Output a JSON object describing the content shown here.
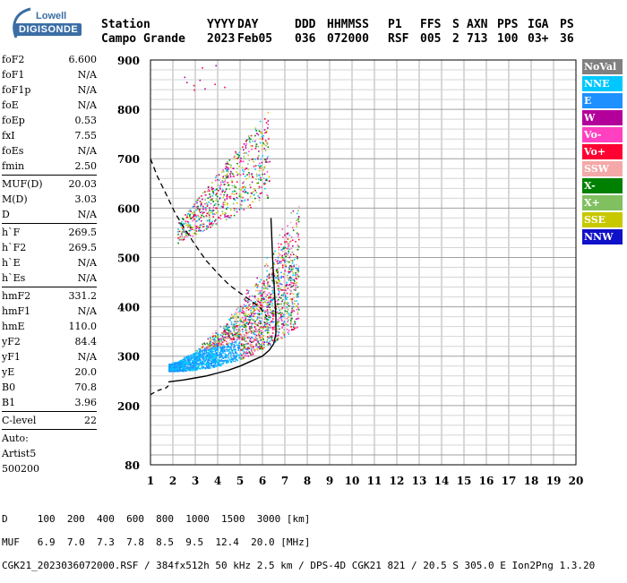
{
  "logo": {
    "line1": "Lowell",
    "line2": "DIGISONDE"
  },
  "header": {
    "columns": [
      "Station",
      "YYYY",
      "DAY",
      "DDD",
      "HHMMSS",
      "P1",
      "FFS",
      "S",
      "AXN",
      "PPS",
      "IGA",
      "PS"
    ],
    "values": [
      "Campo Grande",
      "2023",
      "Feb05",
      "036",
      "072000",
      "RSF",
      "005",
      "2",
      "713",
      "100",
      "03+",
      "36"
    ]
  },
  "params_group1": [
    {
      "k": "foF2",
      "v": "6.600"
    },
    {
      "k": "foF1",
      "v": "N/A"
    },
    {
      "k": "foF1p",
      "v": "N/A"
    },
    {
      "k": "foE",
      "v": "N/A"
    },
    {
      "k": "foEp",
      "v": "0.53"
    },
    {
      "k": "fxI",
      "v": "7.55"
    },
    {
      "k": "foEs",
      "v": "N/A"
    },
    {
      "k": "fmin",
      "v": "2.50"
    }
  ],
  "params_group2": [
    {
      "k": "MUF(D)",
      "v": "20.03"
    },
    {
      "k": "M(D)",
      "v": "3.03"
    },
    {
      "k": "D",
      "v": "N/A"
    }
  ],
  "params_group3": [
    {
      "k": "h`F",
      "v": "269.5"
    },
    {
      "k": "h`F2",
      "v": "269.5"
    },
    {
      "k": "h`E",
      "v": "N/A"
    },
    {
      "k": "h`Es",
      "v": "N/A"
    }
  ],
  "params_group4": [
    {
      "k": "hmF2",
      "v": "331.2"
    },
    {
      "k": "hmF1",
      "v": "N/A"
    },
    {
      "k": "hmE",
      "v": "110.0"
    },
    {
      "k": "yF2",
      "v": "84.4"
    },
    {
      "k": "yF1",
      "v": "N/A"
    },
    {
      "k": "yE",
      "v": "20.0"
    },
    {
      "k": "B0",
      "v": "70.8"
    },
    {
      "k": "B1",
      "v": "3.96"
    }
  ],
  "params_group5": [
    {
      "k": "C-level",
      "v": "22"
    }
  ],
  "auto": {
    "l1": "Auto:",
    "l2": "Artist5",
    "l3": "500200"
  },
  "legend": [
    {
      "label": "NoVal",
      "color": "#808080"
    },
    {
      "label": "NNE",
      "color": "#00c8ff"
    },
    {
      "label": "E",
      "color": "#1e90ff"
    },
    {
      "label": "W",
      "color": "#b4009b"
    },
    {
      "label": "Vo-",
      "color": "#ff40c0"
    },
    {
      "label": "Vo+",
      "color": "#ff0032"
    },
    {
      "label": "SSW",
      "color": "#f4a8a8"
    },
    {
      "label": "X-",
      "color": "#008000"
    },
    {
      "label": "X+",
      "color": "#80c060"
    },
    {
      "label": "SSE",
      "color": "#c8c800"
    },
    {
      "label": "NNW",
      "color": "#1010c8"
    }
  ],
  "footer": {
    "line1": "D     100  200  400  600  800  1000  1500  3000 [km]",
    "line2": "MUF   6.9  7.0  7.3  7.8  8.5  9.5  12.4  20.0 [MHz]",
    "line3": "CGK21_2023036072000.RSF / 384fx512h 50 kHz 2.5 km / DPS-4D CGK21 821 / 20.5 S 305.0 E Ion2Png 1.3.20"
  },
  "chart_data": {
    "type": "scatter",
    "xlim": [
      1,
      20
    ],
    "ylim": [
      80,
      900
    ],
    "xticks": [
      1,
      2,
      3,
      4,
      5,
      6,
      7,
      8,
      9,
      10,
      11,
      12,
      13,
      14,
      15,
      16,
      17,
      18,
      19,
      20
    ],
    "yticks": [
      80,
      200,
      300,
      400,
      500,
      600,
      700,
      800,
      900
    ],
    "grid": true,
    "xlabel": "",
    "ylabel": "",
    "clusters": [
      {
        "name": "F2 trace",
        "x_range": [
          1.8,
          7.6
        ],
        "y_range": [
          270,
          590
        ],
        "colors": [
          "W",
          "Vo-",
          "Vo+",
          "NNE",
          "E",
          "X-",
          "X+",
          "SSE",
          "SSW"
        ]
      },
      {
        "name": "second hop",
        "x_range": [
          2.2,
          6.3
        ],
        "y_range": [
          530,
          760
        ],
        "colors": [
          "W",
          "Vo-",
          "Vo+",
          "NNE",
          "X-",
          "SSE",
          "X+"
        ]
      },
      {
        "name": "scattered",
        "x_range": [
          2.5,
          4.5
        ],
        "y_range": [
          840,
          890
        ],
        "colors": [
          "Vo+",
          "W"
        ]
      }
    ],
    "profile_solid": [
      [
        1.8,
        248
      ],
      [
        2.5,
        252
      ],
      [
        3.0,
        256
      ],
      [
        3.5,
        260
      ],
      [
        4.0,
        266
      ],
      [
        4.5,
        272
      ],
      [
        5.0,
        280
      ],
      [
        5.5,
        290
      ],
      [
        6.0,
        300
      ],
      [
        6.3,
        312
      ],
      [
        6.5,
        325
      ],
      [
        6.6,
        345
      ],
      [
        6.6,
        380
      ],
      [
        6.55,
        420
      ],
      [
        6.5,
        460
      ],
      [
        6.45,
        500
      ],
      [
        6.4,
        560
      ],
      [
        6.38,
        580
      ]
    ],
    "profile_dashed_lower": [
      [
        1.0,
        222
      ],
      [
        1.3,
        230
      ],
      [
        1.7,
        236
      ],
      [
        1.8,
        240
      ]
    ],
    "profile_dashed_upper": [
      [
        1.0,
        700
      ],
      [
        1.3,
        665
      ],
      [
        1.7,
        628
      ],
      [
        2.1,
        590
      ],
      [
        2.5,
        560
      ],
      [
        3.0,
        525
      ],
      [
        3.5,
        493
      ],
      [
        4.0,
        468
      ],
      [
        4.5,
        445
      ],
      [
        5.0,
        428
      ],
      [
        5.5,
        412
      ],
      [
        5.9,
        398
      ],
      [
        6.2,
        380
      ]
    ]
  }
}
